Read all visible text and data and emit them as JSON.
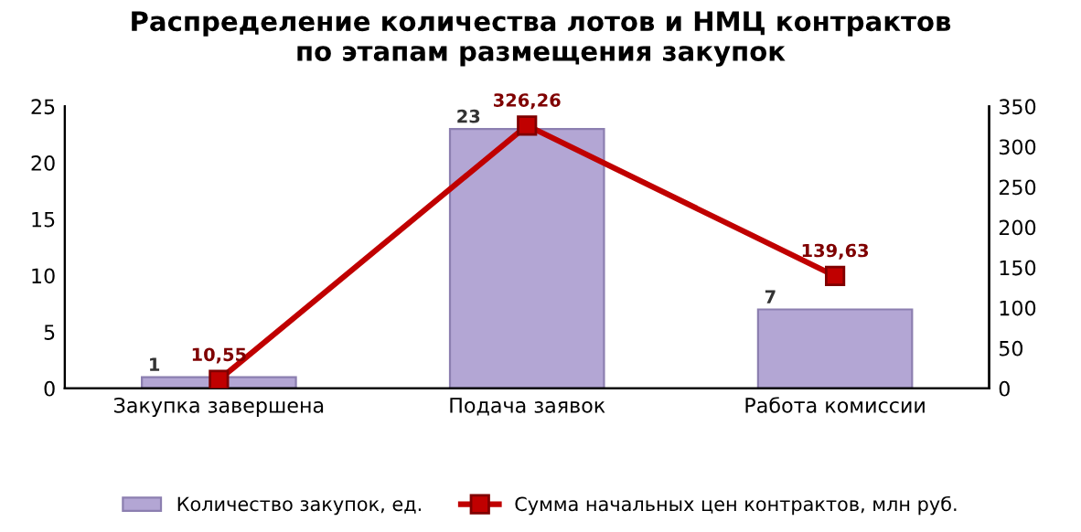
{
  "chart_data": {
    "type": "bar",
    "title": "Распределение количества лотов и НМЦ контрактов\nпо этапам размещения закупок",
    "categories": [
      "Закупка завершена",
      "Подача заявок",
      "Работа комиссии"
    ],
    "series": [
      {
        "name": "Количество закупок, ед.",
        "color": "#b3a6d4",
        "values": [
          1,
          23,
          7
        ],
        "value_labels": [
          "1",
          "23",
          "7"
        ]
      },
      {
        "name": "Сумма начальных цен контрактов, млн руб.",
        "type": "line",
        "axis": "y2",
        "color": "#c00000",
        "values": [
          10.55,
          326.26,
          139.63
        ],
        "value_labels": [
          "10,55",
          "326,26",
          "139,63"
        ]
      }
    ],
    "ylim": [
      0,
      25
    ],
    "yticks": [
      0,
      5,
      10,
      15,
      20,
      25
    ],
    "y2lim": [
      0,
      350
    ],
    "y2ticks": [
      0,
      50,
      100,
      150,
      200,
      250,
      300,
      350
    ],
    "legend": "bottom",
    "grid": false,
    "marker": "square",
    "line_style": "solid"
  }
}
